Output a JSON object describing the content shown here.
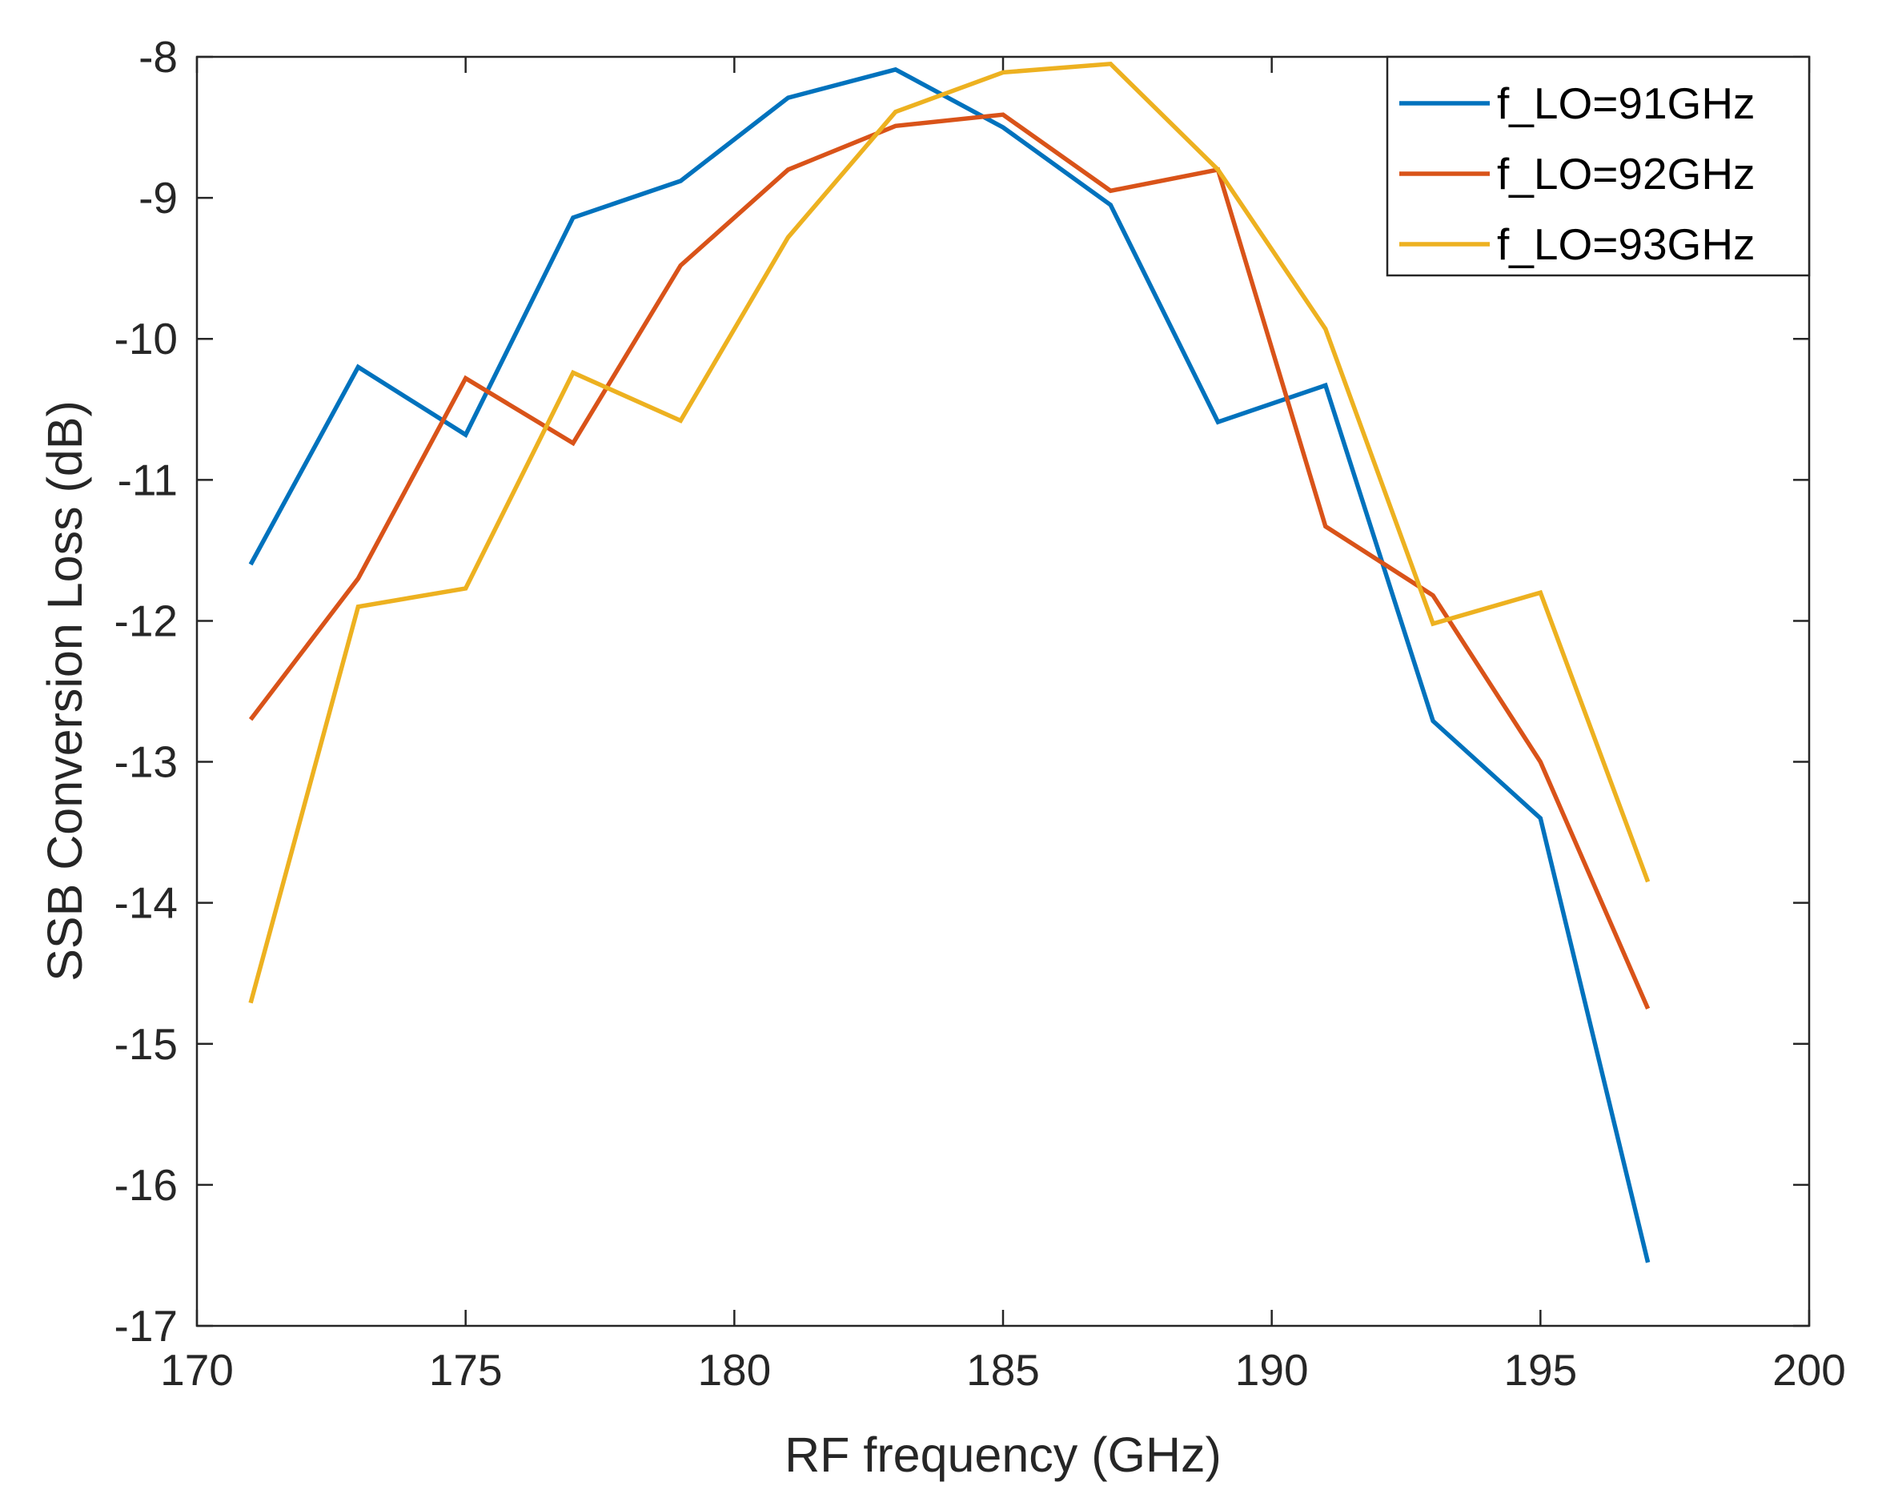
{
  "chart_data": {
    "type": "line",
    "title": "",
    "xlabel": "RF frequency (GHz)",
    "ylabel": "SSB Conversion Loss (dB)",
    "xlim": [
      170,
      200
    ],
    "ylim": [
      -17,
      -8
    ],
    "xticks": [
      170,
      175,
      180,
      185,
      190,
      195,
      200
    ],
    "yticks": [
      -8,
      -9,
      -10,
      -11,
      -12,
      -13,
      -14,
      -15,
      -16,
      -17
    ],
    "grid": false,
    "legend_position": "top-right",
    "x": [
      171,
      173,
      175,
      177,
      179,
      181,
      183,
      185,
      187,
      189,
      191,
      193,
      195,
      197
    ],
    "series": [
      {
        "name": "f_LO=91GHz",
        "color": "#0072BD",
        "values": [
          -11.6,
          -10.2,
          -10.68,
          -9.14,
          -8.88,
          -8.29,
          -8.09,
          -8.5,
          -9.05,
          -10.59,
          -10.33,
          -12.71,
          -13.4,
          -16.55
        ]
      },
      {
        "name": "f_LO=92GHz",
        "color": "#D95319",
        "values": [
          -12.7,
          -11.7,
          -10.28,
          -10.74,
          -9.48,
          -8.8,
          -8.49,
          -8.41,
          -8.95,
          -8.8,
          -11.33,
          -11.82,
          -13.0,
          -14.75
        ]
      },
      {
        "name": "f_LO=93GHz",
        "color": "#EDB120",
        "values": [
          -14.71,
          -11.9,
          -11.77,
          -10.24,
          -10.58,
          -9.28,
          -8.39,
          -8.11,
          -8.05,
          -8.8,
          -9.93,
          -12.02,
          -11.8,
          -13.85
        ]
      }
    ]
  }
}
